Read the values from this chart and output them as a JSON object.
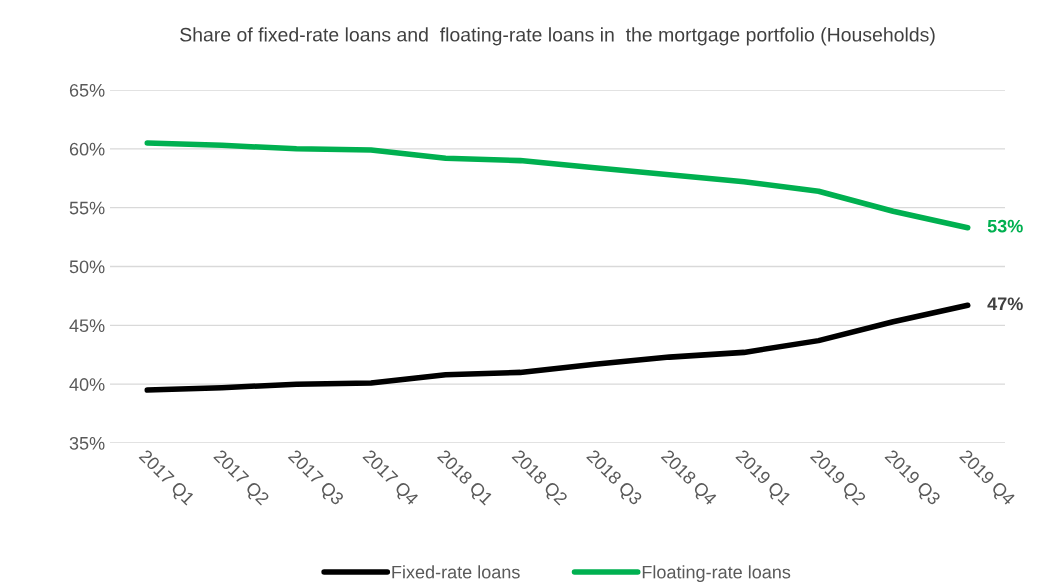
{
  "chart_data": {
    "type": "line",
    "title": "Share of fixed-rate loans and  floating-rate loans in  the mortgage portfolio (Households)",
    "categories": [
      "2017 Q1",
      "2017 Q2",
      "2017 Q3",
      "2017 Q4",
      "2018 Q1",
      "2018 Q2",
      "2018 Q3",
      "2018 Q4",
      "2019 Q1",
      "2019 Q2",
      "2019 Q3",
      "2019 Q4"
    ],
    "series": [
      {
        "name": "Fixed-rate loans",
        "color": "#000000",
        "values": [
          39.5,
          39.7,
          40.0,
          40.1,
          40.8,
          41.0,
          41.7,
          42.3,
          42.7,
          43.7,
          45.3,
          46.7
        ],
        "value_labels": [
          null,
          null,
          null,
          null,
          null,
          null,
          null,
          null,
          null,
          null,
          null,
          "47%"
        ]
      },
      {
        "name": "Floating-rate loans",
        "color": "#00b050",
        "values": [
          60.5,
          60.3,
          60.0,
          59.9,
          59.2,
          59.0,
          58.4,
          57.8,
          57.2,
          56.4,
          54.7,
          53.3
        ],
        "value_labels": [
          null,
          null,
          null,
          null,
          null,
          null,
          null,
          null,
          null,
          null,
          null,
          "53%"
        ]
      }
    ],
    "ylim": [
      35,
      65
    ],
    "yticks": [
      {
        "value": 35,
        "label": "35%"
      },
      {
        "value": 40,
        "label": "40%"
      },
      {
        "value": 45,
        "label": "45%"
      },
      {
        "value": 50,
        "label": "50%"
      },
      {
        "value": 55,
        "label": "55%"
      },
      {
        "value": 60,
        "label": "60%"
      },
      {
        "value": 65,
        "label": "65%"
      }
    ],
    "grid": "y",
    "legend": "bottom",
    "line_style": "solid",
    "marker": "none"
  }
}
